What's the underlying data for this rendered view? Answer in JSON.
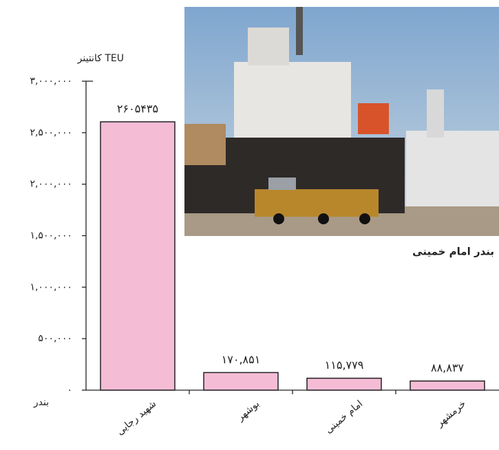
{
  "chart_data": {
    "type": "bar",
    "y_label": "کانتینر TEU",
    "x_label": "بندر",
    "annotation": "بندر امام خمینی",
    "categories": [
      "شهید رجایی",
      "بوشهر",
      "امام خمینی",
      "خرمشهر"
    ],
    "values": [
      2605435,
      170851,
      115779,
      88837
    ],
    "value_labels": [
      "۲۶۰۵۴۳۵",
      "۱۷۰,۸۵۱",
      "۱۱۵,۷۷۹",
      "۸۸,۸۳۷"
    ],
    "color": "#f5bcd6",
    "ylim": [
      0,
      3000000
    ],
    "yticks": [
      {
        "value": 0,
        "label": "۰"
      },
      {
        "value": 500000,
        "label": "۵۰۰,۰۰۰"
      },
      {
        "value": 1000000,
        "label": "۱,۰۰۰,۰۰۰"
      },
      {
        "value": 1500000,
        "label": "۱,۵۰۰,۰۰۰"
      },
      {
        "value": 2000000,
        "label": "۲,۰۰۰,۰۰۰"
      },
      {
        "value": 2500000,
        "label": "۲,۵۰۰,۰۰۰"
      },
      {
        "value": 3000000,
        "label": "۳,۰۰۰,۰۰۰"
      }
    ],
    "grid": false
  }
}
